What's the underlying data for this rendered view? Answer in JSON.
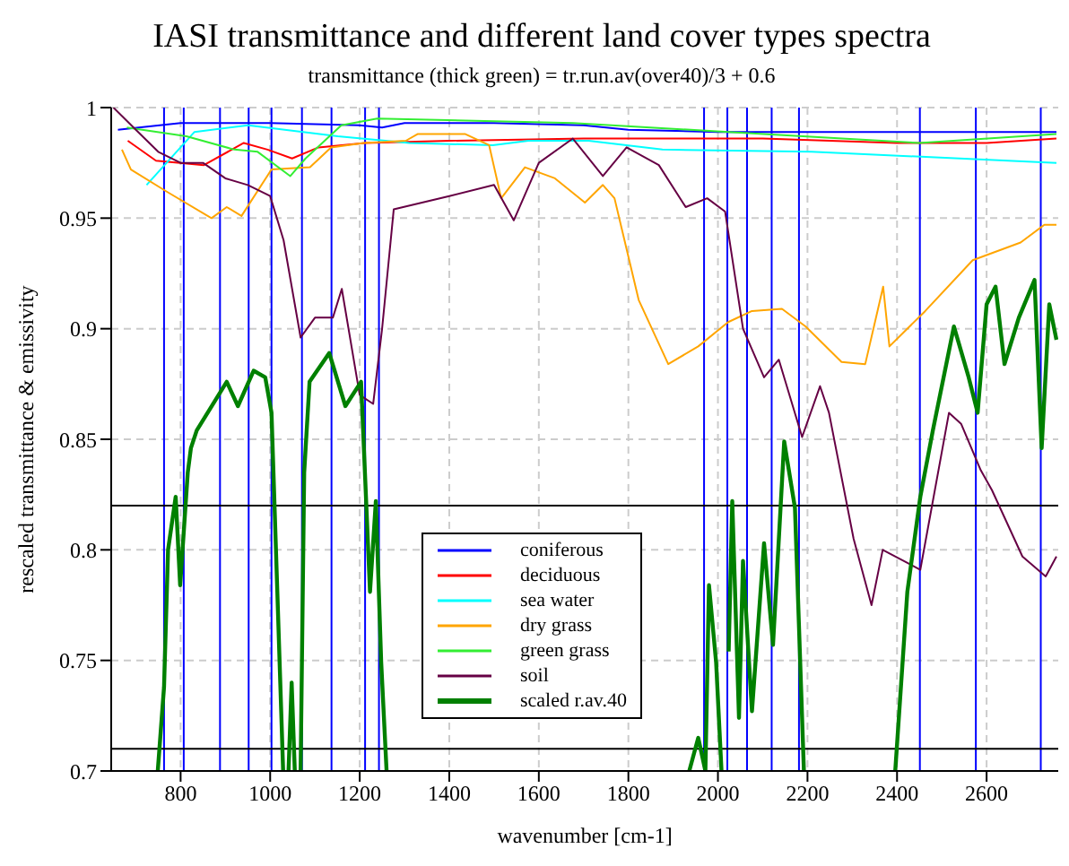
{
  "chart_data": {
    "type": "line",
    "title": "IASI transmittance and different land cover types spectra",
    "subtitle": "transmittance (thick green) = tr.run.av(over40)/3  + 0.6",
    "xlabel": "wavenumber [cm-1]",
    "ylabel": "rescaled transmittance & emissivity",
    "xlim": [
      645,
      2760
    ],
    "xticks": [
      800,
      1000,
      1200,
      1400,
      1600,
      1800,
      2000,
      2200,
      2400,
      2600
    ],
    "ylim": [
      0.7,
      1
    ],
    "yticks": [
      0.7,
      0.75,
      0.8,
      0.85,
      0.9,
      0.95,
      1
    ],
    "grid": true,
    "legend": "bottom",
    "marker": "none",
    "line_style": "solid",
    "series": [
      {
        "name": "coniferous",
        "color": "#0000ff",
        "x": [
          660,
          800,
          1000,
          1200,
          1250,
          1300,
          1500,
          1700,
          1800,
          2000,
          2400,
          2756
        ],
        "values": [
          0.99,
          0.993,
          0.993,
          0.992,
          0.991,
          0.993,
          0.993,
          0.992,
          0.99,
          0.989,
          0.989,
          0.989
        ]
      },
      {
        "name": "deciduous",
        "color": "#ff0000",
        "x": [
          682,
          745,
          852,
          941,
          994,
          1049,
          1108,
          1212,
          1400,
          1700,
          2100,
          2400,
          2600,
          2756
        ],
        "values": [
          0.985,
          0.976,
          0.974,
          0.984,
          0.981,
          0.977,
          0.982,
          0.984,
          0.985,
          0.986,
          0.986,
          0.984,
          0.984,
          0.986
        ]
      },
      {
        "name": "sea water",
        "color": "#00ffff",
        "x": [
          724,
          831,
          951,
          1151,
          1311,
          1497,
          1577,
          1711,
          1876,
          2209,
          2756
        ],
        "values": [
          0.965,
          0.989,
          0.992,
          0.987,
          0.984,
          0.983,
          0.985,
          0.985,
          0.981,
          0.98,
          0.975
        ]
      },
      {
        "name": "dry grass",
        "color": "#ffa500",
        "x": [
          669,
          689,
          769,
          869,
          903,
          936,
          1003,
          1089,
          1136,
          1209,
          1303,
          1329,
          1436,
          1489,
          1516,
          1569,
          1636,
          1703,
          1743,
          1769,
          1823,
          1889,
          1956,
          2023,
          2076,
          2143,
          2196,
          2276,
          2329,
          2369,
          2383,
          2463,
          2569,
          2676,
          2729,
          2756
        ],
        "values": [
          0.981,
          0.972,
          0.962,
          0.95,
          0.955,
          0.951,
          0.972,
          0.973,
          0.982,
          0.984,
          0.985,
          0.988,
          0.988,
          0.983,
          0.959,
          0.973,
          0.968,
          0.957,
          0.965,
          0.959,
          0.913,
          0.884,
          0.892,
          0.903,
          0.908,
          0.909,
          0.901,
          0.885,
          0.884,
          0.919,
          0.892,
          0.908,
          0.931,
          0.939,
          0.947,
          0.947
        ]
      },
      {
        "name": "green grass",
        "color": "#33ee33",
        "x": [
          680,
          813,
          920,
          972,
          1045,
          1079,
          1159,
          1239,
          1676,
          2023,
          2449,
          2756
        ],
        "values": [
          0.991,
          0.987,
          0.981,
          0.98,
          0.969,
          0.977,
          0.992,
          0.995,
          0.993,
          0.989,
          0.984,
          0.988
        ]
      },
      {
        "name": "soil",
        "color": "#660044",
        "x": [
          650,
          700,
          750,
          800,
          850,
          900,
          950,
          1000,
          1030,
          1068,
          1100,
          1140,
          1160,
          1200,
          1230,
          1250,
          1276,
          1400,
          1500,
          1544,
          1600,
          1676,
          1743,
          1796,
          1868,
          1928,
          1976,
          2016,
          2056,
          2103,
          2136,
          2188,
          2228,
          2248,
          2303,
          2343,
          2368,
          2452,
          2516,
          2543,
          2587,
          2612,
          2680,
          2732,
          2756
        ],
        "values": [
          1,
          0.99,
          0.98,
          0.975,
          0.975,
          0.968,
          0.965,
          0.96,
          0.94,
          0.896,
          0.905,
          0.905,
          0.918,
          0.87,
          0.866,
          0.9,
          0.954,
          0.96,
          0.965,
          0.949,
          0.975,
          0.986,
          0.969,
          0.982,
          0.974,
          0.955,
          0.959,
          0.953,
          0.9,
          0.878,
          0.886,
          0.851,
          0.874,
          0.862,
          0.805,
          0.775,
          0.8,
          0.791,
          0.862,
          0.857,
          0.836,
          0.827,
          0.797,
          0.788,
          0.797
        ]
      },
      {
        "name": "scaled r.av.40",
        "color": "#008000",
        "x": [
          749,
          763,
          772,
          789,
          799,
          816,
          823,
          836,
          903,
          928,
          963,
          989,
          1003,
          1016,
          1029,
          1035,
          1041,
          1048,
          1055,
          1062,
          1068,
          1076,
          1088,
          1132,
          1168,
          1203,
          1223,
          1236,
          1248,
          1260,
          1600,
          1936,
          1956,
          1972,
          1980,
          1996,
          2008,
          2016,
          2024,
          2032,
          2047,
          2056,
          2076,
          2103,
          2123,
          2148,
          2172,
          2192,
          2300,
          2396,
          2423,
          2452,
          2480,
          2527,
          2560,
          2580,
          2600,
          2620,
          2640,
          2672,
          2707,
          2723,
          2740,
          2756
        ],
        "values": [
          0.7,
          0.738,
          0.8,
          0.824,
          0.784,
          0.835,
          0.846,
          0.854,
          0.876,
          0.865,
          0.881,
          0.878,
          0.862,
          0.781,
          0.7,
          null,
          0.7,
          0.74,
          0.7,
          null,
          0.7,
          0.835,
          0.876,
          0.889,
          0.865,
          0.876,
          0.781,
          0.822,
          0.749,
          0.7,
          null,
          0.7,
          0.715,
          0.7,
          0.784,
          0.749,
          0.7,
          null,
          0.754,
          0.822,
          0.724,
          0.795,
          0.727,
          0.803,
          0.757,
          0.849,
          0.819,
          0.7,
          null,
          0.7,
          0.781,
          0.824,
          0.854,
          0.901,
          0.878,
          0.862,
          0.911,
          0.919,
          0.884,
          0.905,
          0.922,
          0.846,
          0.911,
          0.895
        ]
      }
    ],
    "ref_lines": [
      {
        "axis": "x",
        "value": 763,
        "color": "#0000ff"
      },
      {
        "axis": "x",
        "value": 807,
        "color": "#0000ff"
      },
      {
        "axis": "x",
        "value": 888,
        "color": "#0000ff"
      },
      {
        "axis": "x",
        "value": 952,
        "color": "#0000ff"
      },
      {
        "axis": "x",
        "value": 1003,
        "color": "#0000ff"
      },
      {
        "axis": "x",
        "value": 1071,
        "color": "#0000ff"
      },
      {
        "axis": "x",
        "value": 1137,
        "color": "#0000ff"
      },
      {
        "axis": "x",
        "value": 1212,
        "color": "#0000ff"
      },
      {
        "axis": "x",
        "value": 1243,
        "color": "#0000ff"
      },
      {
        "axis": "x",
        "value": 1969,
        "color": "#0000ff"
      },
      {
        "axis": "x",
        "value": 2021,
        "color": "#0000ff"
      },
      {
        "axis": "x",
        "value": 2065,
        "color": "#0000ff"
      },
      {
        "axis": "x",
        "value": 2120,
        "color": "#0000ff"
      },
      {
        "axis": "x",
        "value": 2181,
        "color": "#0000ff"
      },
      {
        "axis": "x",
        "value": 2451,
        "color": "#0000ff"
      },
      {
        "axis": "x",
        "value": 2576,
        "color": "#0000ff"
      },
      {
        "axis": "x",
        "value": 2721,
        "color": "#0000ff"
      },
      {
        "axis": "y",
        "value": 0.82,
        "color": "#000000"
      },
      {
        "axis": "y",
        "value": 0.71,
        "color": "#000000"
      }
    ]
  }
}
